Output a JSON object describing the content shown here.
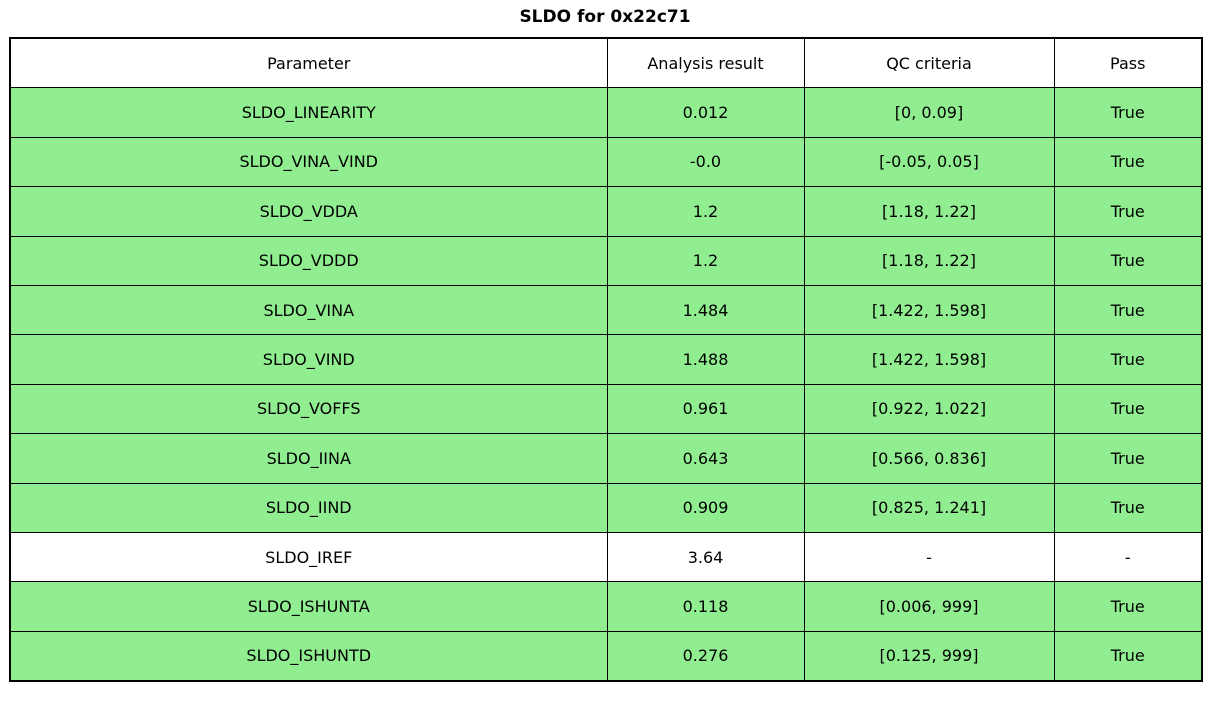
{
  "title": "SLDO for 0x22c71",
  "colors": {
    "pass_row_green": "#90ee90",
    "neutral_row_white": "#ffffff",
    "border_black": "#000000"
  },
  "table": {
    "columns": [
      "Parameter",
      "Analysis result",
      "QC criteria",
      "Pass"
    ],
    "rows": [
      {
        "param": "SLDO_LINEARITY",
        "result": "0.012",
        "criteria": "[0, 0.09]",
        "pass": "True",
        "green": true
      },
      {
        "param": "SLDO_VINA_VIND",
        "result": "-0.0",
        "criteria": "[-0.05, 0.05]",
        "pass": "True",
        "green": true
      },
      {
        "param": "SLDO_VDDA",
        "result": "1.2",
        "criteria": "[1.18, 1.22]",
        "pass": "True",
        "green": true
      },
      {
        "param": "SLDO_VDDD",
        "result": "1.2",
        "criteria": "[1.18, 1.22]",
        "pass": "True",
        "green": true
      },
      {
        "param": "SLDO_VINA",
        "result": "1.484",
        "criteria": "[1.422, 1.598]",
        "pass": "True",
        "green": true
      },
      {
        "param": "SLDO_VIND",
        "result": "1.488",
        "criteria": "[1.422, 1.598]",
        "pass": "True",
        "green": true
      },
      {
        "param": "SLDO_VOFFS",
        "result": "0.961",
        "criteria": "[0.922, 1.022]",
        "pass": "True",
        "green": true
      },
      {
        "param": "SLDO_IINA",
        "result": "0.643",
        "criteria": "[0.566, 0.836]",
        "pass": "True",
        "green": true
      },
      {
        "param": "SLDO_IIND",
        "result": "0.909",
        "criteria": "[0.825, 1.241]",
        "pass": "True",
        "green": true
      },
      {
        "param": "SLDO_IREF",
        "result": "3.64",
        "criteria": "-",
        "pass": "-",
        "green": false
      },
      {
        "param": "SLDO_ISHUNTA",
        "result": "0.118",
        "criteria": "[0.006, 999]",
        "pass": "True",
        "green": true
      },
      {
        "param": "SLDO_ISHUNTD",
        "result": "0.276",
        "criteria": "[0.125, 999]",
        "pass": "True",
        "green": true
      }
    ]
  }
}
